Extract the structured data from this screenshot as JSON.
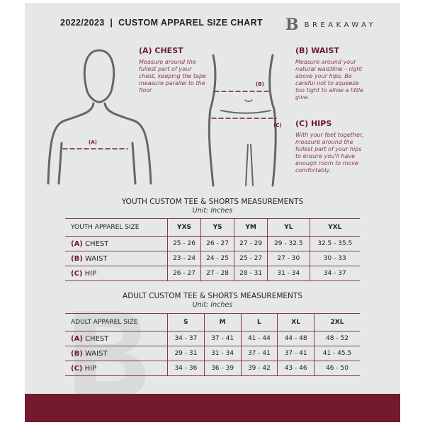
{
  "header": {
    "title": "2022/2023  |  CUSTOM APPAREL SIZE CHART",
    "brand": "BREAKAWAY",
    "logo_letter": "B"
  },
  "guide": {
    "chest": {
      "heading": "(A) CHEST",
      "text": "Measure around the fullest part of your chest, keeping the tape measure parallel to the floor",
      "marker": "(A)"
    },
    "waist": {
      "heading": "(B) WAIST",
      "text": "Measure around your natural waistline – right above your hips. Be careful not to squeeze too tight to allow a little give.",
      "marker": "(B)"
    },
    "hips": {
      "heading": "(C) HIPS",
      "text": "With your feet together, measure around the fullest part of your hips to ensure you'll have enough room to move comfortably.",
      "marker": "(C)"
    }
  },
  "youth": {
    "title": "YOUTH CUSTOM TEE & SHORTS MEASUREMENTS",
    "unit": "Unit: Inches",
    "header": "YOUTH APPAREL SIZE",
    "sizes": [
      "YXS",
      "YS",
      "YM",
      "YL",
      "YXL"
    ],
    "rows": [
      {
        "code": "(A)",
        "label": "CHEST",
        "values": [
          "25 - 26",
          "26 - 27",
          "27 - 29",
          "29 - 32.5",
          "32.5 - 35.5"
        ]
      },
      {
        "code": "(B)",
        "label": "WAIST",
        "values": [
          "23 - 24",
          "24 - 25",
          "25 - 27",
          "27 - 30",
          "30 - 33"
        ]
      },
      {
        "code": "(C)",
        "label": "HIP",
        "values": [
          "26 - 27",
          "27 - 28",
          "28 - 31",
          "31 - 34",
          "34 - 37"
        ]
      }
    ]
  },
  "adult": {
    "title": "ADULT CUSTOM TEE & SHORTS MEASUREMENTS",
    "unit": "Unit: Inches",
    "header": "ADULT APPAREL SIZE",
    "sizes": [
      "S",
      "M",
      "L",
      "XL",
      "2XL"
    ],
    "rows": [
      {
        "code": "(A)",
        "label": "CHEST",
        "values": [
          "34 - 37",
          "37 - 41",
          "41 - 44",
          "44 - 48",
          "48 - 52"
        ]
      },
      {
        "code": "(B)",
        "label": "WAIST",
        "values": [
          "29 - 31",
          "31 - 34",
          "37 - 41",
          "37 - 41",
          "41 - 45.5"
        ]
      },
      {
        "code": "(C)",
        "label": "HIP",
        "values": [
          "34 - 36",
          "36 - 39",
          "39 - 42",
          "43 - 46",
          "46 - 50"
        ]
      }
    ]
  },
  "colors": {
    "accent": "#741a2f",
    "background": "#e6e7e8"
  }
}
